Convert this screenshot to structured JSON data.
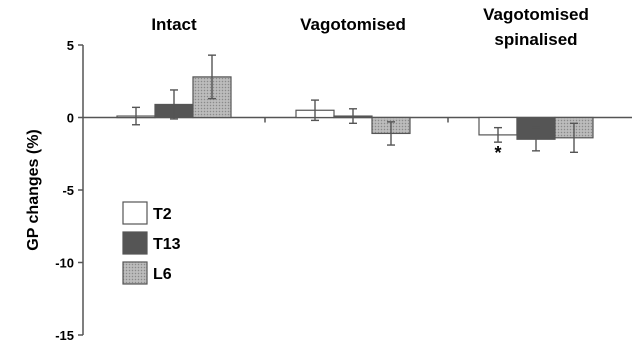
{
  "chart_data": {
    "type": "bar",
    "title": "",
    "xlabel": "",
    "ylabel": "GP changes (%)",
    "ylim": [
      -15,
      5
    ],
    "yticks": [
      5,
      0,
      -5,
      -10,
      -15
    ],
    "ytick_labels": [
      "5",
      "0",
      "-5",
      "-10",
      "-15"
    ],
    "categories": [
      "Intact",
      "Vagotomised",
      "Vagotomised\nspinalised"
    ],
    "category_lines": [
      [
        "Intact"
      ],
      [
        "Vagotomised"
      ],
      [
        "Vagotomised",
        "spinalised"
      ]
    ],
    "series": [
      {
        "name": "T2",
        "values": [
          0.1,
          0.5,
          -1.2
        ],
        "errors": [
          0.6,
          0.7,
          0.5
        ],
        "color": "#ffffff"
      },
      {
        "name": "T13",
        "values": [
          0.9,
          0.1,
          -1.5
        ],
        "errors": [
          1.0,
          0.5,
          0.8
        ],
        "color": "#555555"
      },
      {
        "name": "L6",
        "values": [
          2.8,
          -1.1,
          -1.4
        ],
        "errors": [
          1.5,
          0.8,
          1.0
        ],
        "color": "#aaaaaa"
      }
    ],
    "annotations": [
      {
        "text": "*",
        "category": 2,
        "series": 0
      }
    ],
    "legend": {
      "placement": "bottom-left",
      "entries": [
        "T2",
        "T13",
        "L6"
      ]
    },
    "grid": false
  }
}
